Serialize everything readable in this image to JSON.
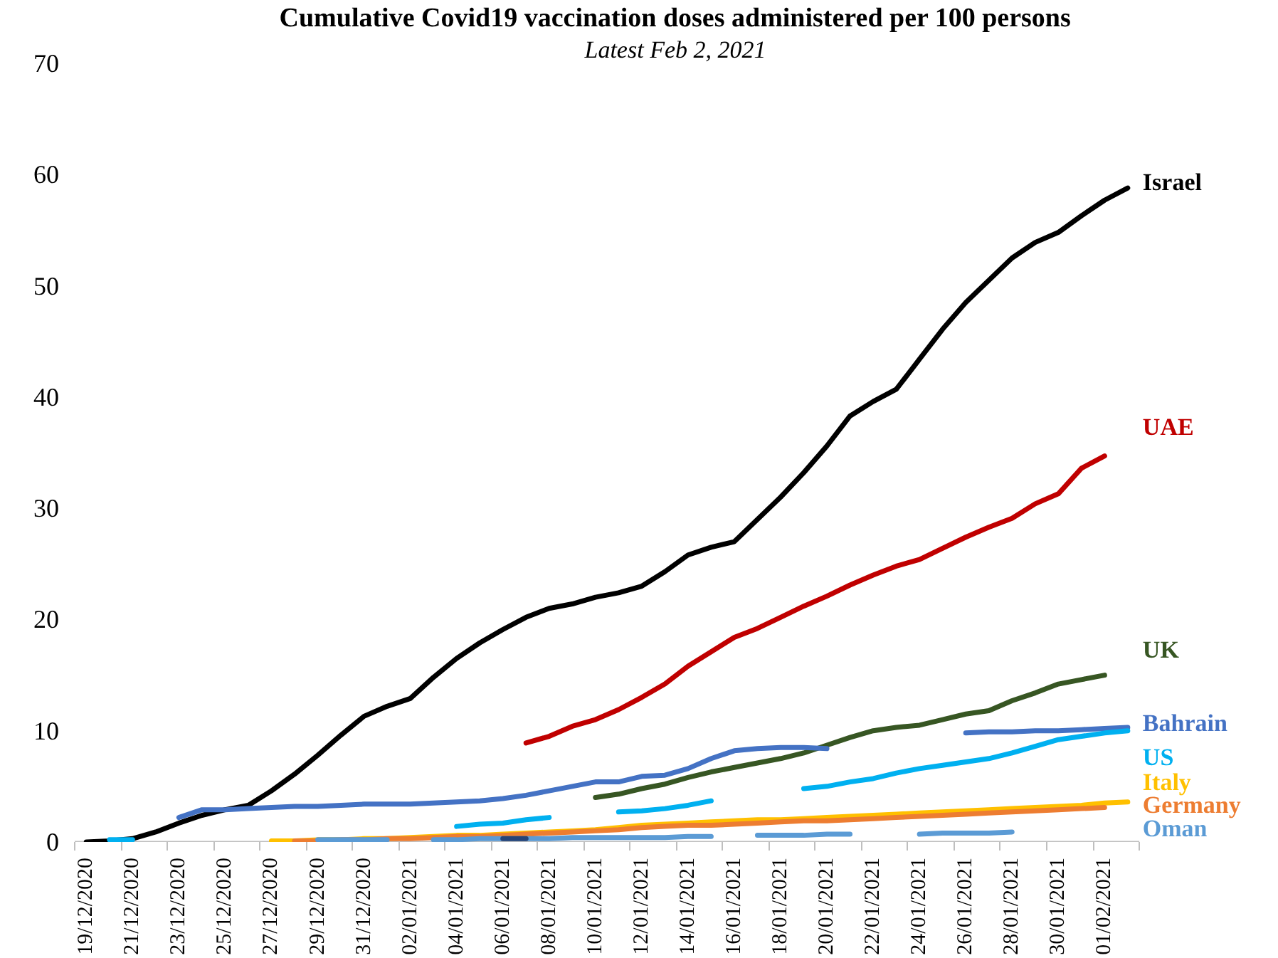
{
  "chart_data": {
    "type": "line",
    "title": "Cumulative Covid19 vaccination doses administered per 100 persons",
    "subtitle": "Latest Feb 2, 2021",
    "categories": [
      "19/12/2020",
      null,
      "21/12/2020",
      null,
      "23/12/2020",
      null,
      "25/12/2020",
      null,
      "27/12/2020",
      null,
      "29/12/2020",
      null,
      "31/12/2020",
      null,
      "02/01/2021",
      null,
      "04/01/2021",
      null,
      "06/01/2021",
      null,
      "08/01/2021",
      null,
      "10/01/2021",
      null,
      "12/01/2021",
      null,
      "14/01/2021",
      null,
      "16/01/2021",
      null,
      "18/01/2021",
      null,
      "20/01/2021",
      null,
      "22/01/2021",
      null,
      "24/01/2021",
      null,
      "26/01/2021",
      null,
      "28/01/2021",
      null,
      "30/01/2021",
      null,
      "01/02/2021",
      null
    ],
    "series": [
      {
        "name": "Israel",
        "color": "#000000",
        "values": [
          0.0,
          0.1,
          0.3,
          0.9,
          1.7,
          2.4,
          2.9,
          3.3,
          4.6,
          6.1,
          7.8,
          9.6,
          11.3,
          12.2,
          12.9,
          14.8,
          16.5,
          17.9,
          19.1,
          20.2,
          21.0,
          21.4,
          22.0,
          22.4,
          23.0,
          24.3,
          25.8,
          26.5,
          27.0,
          29.0,
          31.0,
          33.2,
          35.6,
          38.3,
          39.6,
          40.7,
          43.4,
          46.1,
          48.5,
          50.5,
          52.5,
          53.9,
          54.8,
          56.3,
          57.7,
          58.8
        ]
      },
      {
        "name": "UAE",
        "color": "#c00000",
        "values": [
          null,
          null,
          null,
          null,
          null,
          null,
          null,
          null,
          null,
          null,
          null,
          null,
          null,
          null,
          null,
          null,
          null,
          null,
          null,
          8.9,
          9.5,
          10.4,
          11.0,
          11.9,
          13.0,
          14.2,
          15.8,
          17.1,
          18.4,
          19.2,
          20.2,
          21.2,
          22.1,
          23.1,
          24.0,
          24.8,
          25.4,
          26.4,
          27.4,
          28.3,
          29.1,
          30.4,
          31.3,
          33.6,
          34.7,
          null
        ]
      },
      {
        "name": "UK",
        "color": "#375623",
        "values": [
          null,
          null,
          null,
          null,
          null,
          null,
          null,
          null,
          null,
          null,
          null,
          null,
          null,
          null,
          null,
          null,
          null,
          null,
          null,
          null,
          null,
          null,
          4.0,
          4.3,
          4.8,
          5.2,
          5.8,
          6.3,
          6.7,
          7.1,
          7.5,
          8.0,
          8.7,
          9.4,
          10.0,
          10.3,
          10.5,
          11.0,
          11.5,
          11.8,
          12.7,
          13.4,
          14.2,
          14.6,
          15.0,
          null
        ]
      },
      {
        "name": "Bahrain",
        "color": "#4472c4",
        "values": [
          null,
          null,
          null,
          null,
          2.2,
          2.9,
          2.9,
          3.0,
          3.1,
          3.2,
          3.2,
          3.3,
          3.4,
          3.4,
          3.4,
          3.5,
          3.6,
          3.7,
          3.9,
          4.2,
          4.6,
          5.0,
          5.4,
          5.4,
          5.9,
          6.0,
          6.6,
          7.5,
          8.2,
          8.4,
          8.5,
          8.5,
          8.4,
          null,
          null,
          null,
          null,
          null,
          9.8,
          9.9,
          9.9,
          10.0,
          10.0,
          10.1,
          10.2,
          10.3
        ]
      },
      {
        "name": "US",
        "color": "#00b0f0",
        "values": [
          null,
          0.2,
          0.2,
          null,
          null,
          null,
          null,
          null,
          null,
          null,
          null,
          null,
          null,
          null,
          null,
          null,
          1.4,
          1.6,
          1.7,
          2.0,
          2.2,
          null,
          null,
          2.7,
          2.8,
          3.0,
          3.3,
          3.7,
          null,
          null,
          null,
          4.8,
          5.0,
          5.4,
          5.7,
          6.2,
          6.6,
          6.9,
          7.2,
          7.5,
          8.0,
          8.6,
          9.2,
          9.5,
          9.8,
          10.0
        ]
      },
      {
        "name": "Italy",
        "color": "#ffc000",
        "values": [
          null,
          null,
          null,
          null,
          null,
          null,
          null,
          null,
          0.1,
          0.1,
          0.2,
          0.2,
          0.3,
          0.3,
          0.4,
          0.5,
          0.6,
          0.6,
          0.7,
          0.8,
          0.9,
          1.0,
          1.1,
          1.3,
          1.5,
          1.6,
          1.7,
          1.8,
          1.9,
          2.0,
          2.0,
          2.1,
          2.2,
          2.3,
          2.4,
          2.5,
          2.6,
          2.7,
          2.8,
          2.9,
          3.0,
          3.1,
          3.2,
          3.3,
          3.5,
          3.6
        ]
      },
      {
        "name": "Germany",
        "color": "#ed7d31",
        "values": [
          null,
          null,
          null,
          null,
          null,
          null,
          null,
          null,
          null,
          0.1,
          0.1,
          0.2,
          0.2,
          0.3,
          0.3,
          0.4,
          0.5,
          0.5,
          0.6,
          0.7,
          0.8,
          0.9,
          1.0,
          1.1,
          1.3,
          1.4,
          1.5,
          1.5,
          1.6,
          1.7,
          1.8,
          1.9,
          1.9,
          2.0,
          2.1,
          2.2,
          2.3,
          2.4,
          2.5,
          2.6,
          2.7,
          2.8,
          2.9,
          3.0,
          3.1,
          null
        ]
      },
      {
        "name": "Oman",
        "color": "#5b9bd5",
        "values": [
          null,
          null,
          null,
          null,
          null,
          null,
          null,
          null,
          null,
          null,
          0.2,
          0.2,
          0.2,
          0.2,
          null,
          0.2,
          0.2,
          0.3,
          0.3,
          0.3,
          0.3,
          0.4,
          0.4,
          0.4,
          0.4,
          0.4,
          0.5,
          0.5,
          null,
          0.6,
          0.6,
          0.6,
          0.7,
          0.7,
          null,
          null,
          0.7,
          0.8,
          0.8,
          0.8,
          0.9,
          null,
          null,
          null,
          null,
          null
        ]
      },
      {
        "color": "#264478",
        "values": [
          null,
          null,
          null,
          null,
          null,
          null,
          null,
          null,
          null,
          null,
          null,
          null,
          null,
          null,
          null,
          null,
          null,
          null,
          0.3,
          0.3,
          null,
          null,
          null,
          null,
          null,
          null,
          null,
          null,
          null,
          null,
          null,
          null,
          null,
          null,
          null,
          null,
          null,
          null,
          null,
          null,
          null,
          null,
          null,
          null,
          null,
          null
        ]
      }
    ],
    "ylim": [
      0,
      70
    ],
    "yticks": [
      0,
      10,
      20,
      30,
      40,
      50,
      60,
      70
    ],
    "grid": false
  }
}
